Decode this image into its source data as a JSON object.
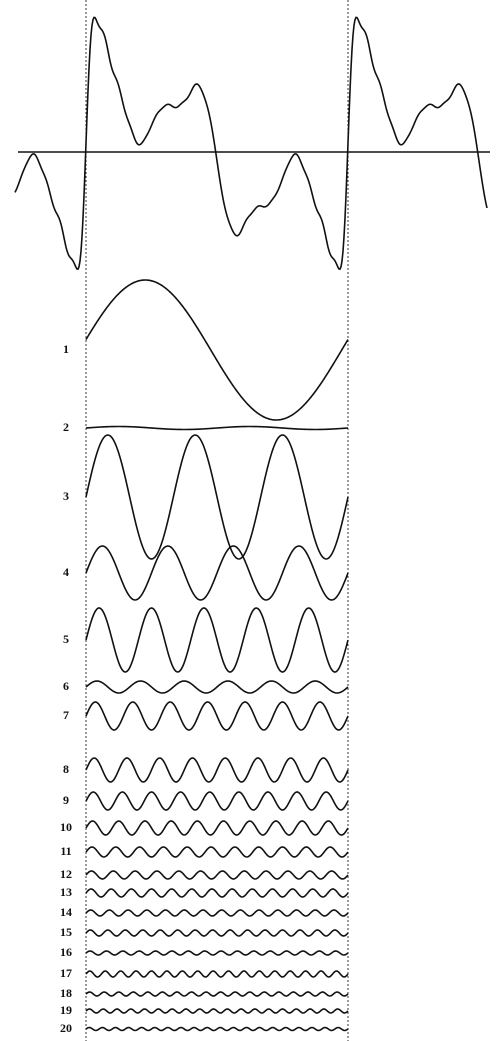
{
  "harmonics": [
    "1",
    "2",
    "3",
    "4",
    "5",
    "6",
    "7",
    "8",
    "9",
    "10",
    "11",
    "12",
    "13",
    "14",
    "15",
    "16",
    "17",
    "18",
    "19",
    "20"
  ]
}
